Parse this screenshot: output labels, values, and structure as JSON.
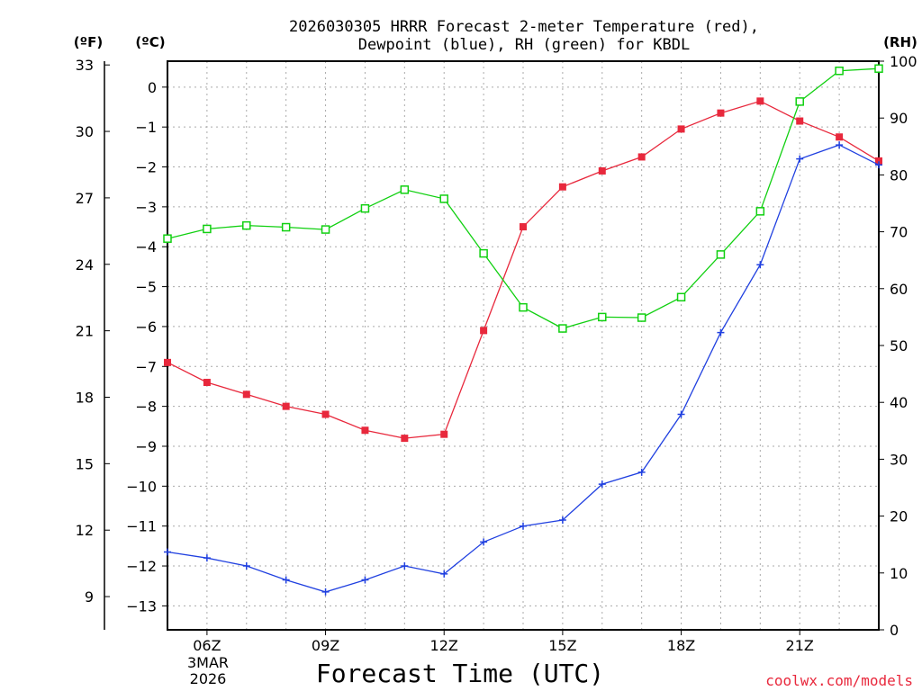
{
  "title_line1": "2026030305 HRRR Forecast 2-meter Temperature (red),",
  "title_line2": "Dewpoint (blue), RH (green) for KBDL",
  "credit": "coolwx.com/models",
  "colors": {
    "temperature": "#e8283c",
    "dewpoint": "#2040e0",
    "rh": "#10d010",
    "grid": "#aaaaaa"
  },
  "chart_data": {
    "type": "line",
    "title": "2026030305 HRRR Forecast 2-meter Temperature (red), Dewpoint (blue), RH (green) for KBDL",
    "xlabel": "Forecast Time (UTC)",
    "x_hours": [
      5,
      6,
      7,
      8,
      9,
      10,
      11,
      12,
      13,
      14,
      15,
      16,
      17,
      18,
      19,
      20,
      21,
      22,
      23
    ],
    "x_range": [
      5,
      23
    ],
    "x_ticks": [
      {
        "hour": 6,
        "label": "06Z"
      },
      {
        "hour": 9,
        "label": "09Z"
      },
      {
        "hour": 12,
        "label": "12Z"
      },
      {
        "hour": 15,
        "label": "15Z"
      },
      {
        "hour": 18,
        "label": "18Z"
      },
      {
        "hour": 21,
        "label": "21Z"
      }
    ],
    "date_label": [
      "3MAR",
      "2026"
    ],
    "axes": {
      "celsius": {
        "label": "(ºC)",
        "range": [
          -13.6,
          0.65
        ],
        "ticks": [
          0,
          -1,
          -2,
          -3,
          -4,
          -5,
          -6,
          -7,
          -8,
          -9,
          -10,
          -11,
          -12,
          -13
        ]
      },
      "fahrenheit": {
        "label": "(ºF)",
        "range": [
          7.5,
          33.17
        ],
        "ticks": [
          33,
          30,
          27,
          24,
          21,
          18,
          15,
          12,
          9
        ]
      },
      "rh": {
        "label": "(RH)",
        "range": [
          0,
          100
        ],
        "ticks": [
          100,
          90,
          80,
          70,
          60,
          50,
          40,
          30,
          20,
          10,
          0
        ]
      }
    },
    "series": [
      {
        "name": "Temperature",
        "unit": "C",
        "marker": "filled-square",
        "values": [
          -6.9,
          -7.4,
          -7.7,
          -8.0,
          -8.2,
          -8.6,
          -8.8,
          -8.7,
          -6.1,
          -3.5,
          -2.5,
          -2.1,
          -1.75,
          -1.05,
          -0.65,
          -0.35,
          -0.85,
          -1.25,
          -1.85
        ]
      },
      {
        "name": "Dewpoint",
        "unit": "C",
        "marker": "plus",
        "values": [
          -11.65,
          -11.8,
          -12.0,
          -12.35,
          -12.65,
          -12.35,
          -12.0,
          -12.2,
          -11.4,
          -11.0,
          -10.85,
          -9.95,
          -9.65,
          -8.2,
          -6.15,
          -4.45,
          -1.8,
          -1.45,
          -1.95
        ]
      },
      {
        "name": "RH",
        "unit": "%",
        "marker": "open-square",
        "values": [
          68.8,
          70.5,
          71.1,
          70.8,
          70.4,
          74.1,
          77.4,
          75.8,
          66.2,
          56.7,
          53.0,
          55.0,
          54.9,
          58.5,
          66.0,
          73.6,
          92.9,
          98.3,
          98.7
        ]
      }
    ]
  }
}
